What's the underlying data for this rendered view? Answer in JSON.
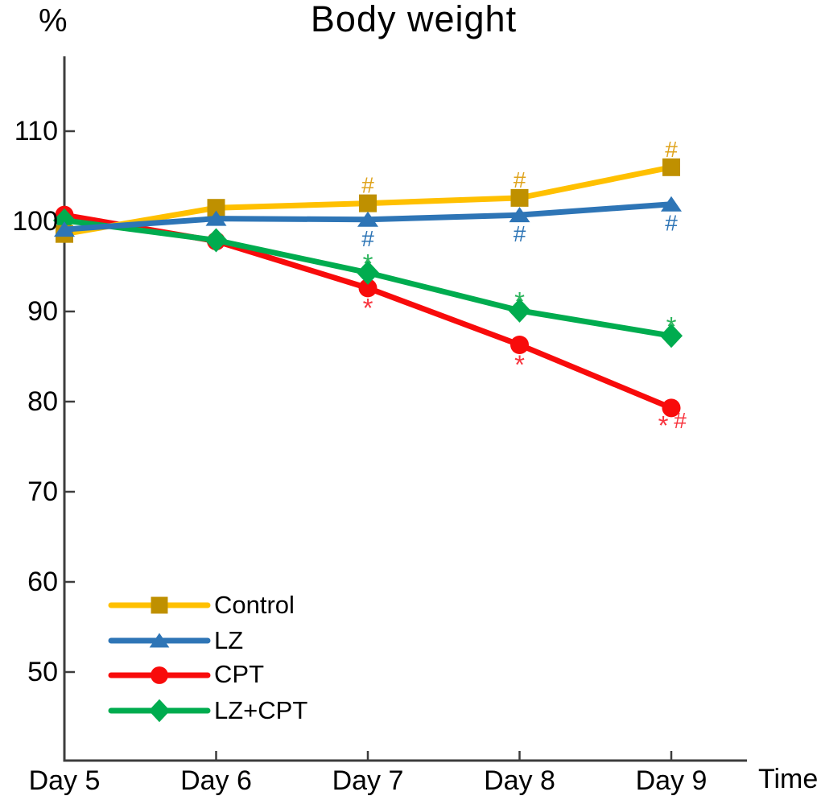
{
  "chart_data": {
    "type": "line",
    "title": "Body weight",
    "ylabel": "%",
    "xlabel": "Time",
    "categories": [
      "Day 5",
      "Day 6",
      "Day 7",
      "Day 8",
      "Day 9"
    ],
    "yticks": [
      50,
      60,
      70,
      80,
      90,
      100,
      110
    ],
    "ylim": [
      40,
      118
    ],
    "grid": false,
    "legend_position": "lower-left",
    "series": [
      {
        "name": "Control",
        "marker": "square",
        "color": "#FFC000",
        "marker_color": "#BF9000",
        "annotation_color": "#DFA31C",
        "annotation_side": "above",
        "values": [
          98.6,
          101.5,
          102.0,
          102.6,
          106.0
        ]
      },
      {
        "name": "LZ",
        "marker": "triangle",
        "color": "#2E75B6",
        "marker_color": "#2E75B6",
        "annotation_color": "#2E75B6",
        "annotation_side": "below",
        "values": [
          99.1,
          100.3,
          100.2,
          100.7,
          101.9
        ]
      },
      {
        "name": "CPT",
        "marker": "circle",
        "color": "#F80B0B",
        "marker_color": "#F80B0B",
        "annotation_color": "#F8353F",
        "annotation_side": "below",
        "values": [
          100.7,
          97.8,
          92.6,
          86.3,
          79.3
        ]
      },
      {
        "name": "LZ+CPT",
        "marker": "diamond",
        "color": "#00AC4F",
        "marker_color": "#00AC4F",
        "annotation_color": "#2BB45C",
        "annotation_side": "above",
        "values": [
          100.1,
          97.9,
          94.3,
          90.1,
          87.3
        ]
      }
    ],
    "annotations": [
      {
        "series": "Control",
        "category": "Day 7",
        "text": "#"
      },
      {
        "series": "Control",
        "category": "Day 8",
        "text": "#"
      },
      {
        "series": "Control",
        "category": "Day 9",
        "text": "#"
      },
      {
        "series": "LZ",
        "category": "Day 7",
        "text": "#"
      },
      {
        "series": "LZ",
        "category": "Day 8",
        "text": "#"
      },
      {
        "series": "LZ",
        "category": "Day 9",
        "text": "#"
      },
      {
        "series": "LZ+CPT",
        "category": "Day 7",
        "text": "*"
      },
      {
        "series": "LZ+CPT",
        "category": "Day 8",
        "text": "*"
      },
      {
        "series": "LZ+CPT",
        "category": "Day 9",
        "text": "*"
      },
      {
        "series": "CPT",
        "category": "Day 7",
        "text": "*"
      },
      {
        "series": "CPT",
        "category": "Day 8",
        "text": "*"
      },
      {
        "series": "CPT",
        "category": "Day 9",
        "text": "* #"
      }
    ],
    "axis_color": "#3d3d3d"
  }
}
